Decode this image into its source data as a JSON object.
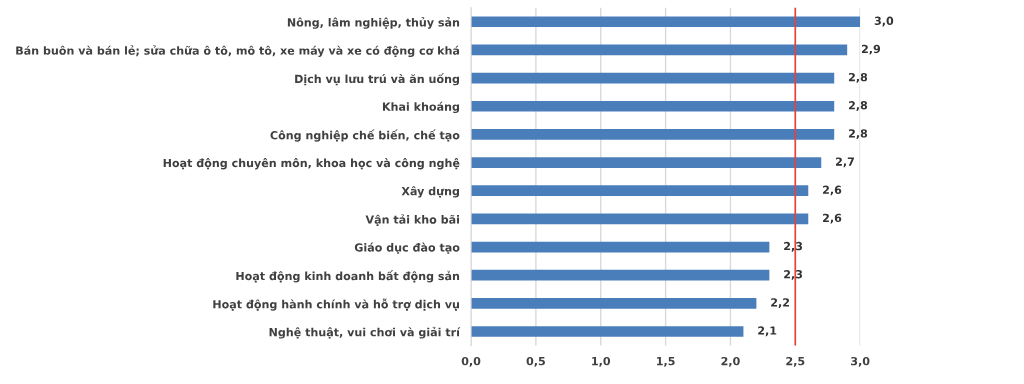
{
  "chart_data": {
    "type": "bar",
    "orientation": "horizontal",
    "categories": [
      "Nông, lâm nghiệp, thủy sản",
      "Bán buôn và bán lẻ; sửa chữa ô tô, mô tô, xe máy và xe có động cơ khá",
      "Dịch vụ lưu trú và ăn uống",
      "Khai khoáng",
      "Công nghiệp chế biến, chế tạo",
      "Hoạt động chuyên môn, khoa học và công nghệ",
      "Xây dựng",
      "Vận tải kho bãi",
      "Giáo dục đào tạo",
      "Hoạt động kinh doanh bất động sản",
      "Hoạt động hành chính và hỗ trợ dịch vụ",
      "Nghệ thuật, vui chơi và giải trí"
    ],
    "values": [
      3.0,
      2.9,
      2.8,
      2.8,
      2.8,
      2.7,
      2.6,
      2.6,
      2.3,
      2.3,
      2.2,
      2.1
    ],
    "value_labels": [
      "3,0",
      "2,9",
      "2,8",
      "2,8",
      "2,8",
      "2,7",
      "2,6",
      "2,6",
      "2,3",
      "2,3",
      "2,2",
      "2,1"
    ],
    "color": "#4a7ebb",
    "xlim": [
      0,
      3.0
    ],
    "xticks": [
      {
        "value": 0,
        "label": "0,0"
      },
      {
        "value": 0.5,
        "label": "0,5"
      },
      {
        "value": 1.0,
        "label": "1,0"
      },
      {
        "value": 1.5,
        "label": "1,5"
      },
      {
        "value": 2.0,
        "label": "2,0"
      },
      {
        "value": 2.5,
        "label": "2,5"
      },
      {
        "value": 3.0,
        "label": "3,0"
      }
    ],
    "grid": "x",
    "ref_lines": [
      {
        "axis": "x",
        "value": 2.5,
        "color": "#e8403a"
      }
    ]
  }
}
